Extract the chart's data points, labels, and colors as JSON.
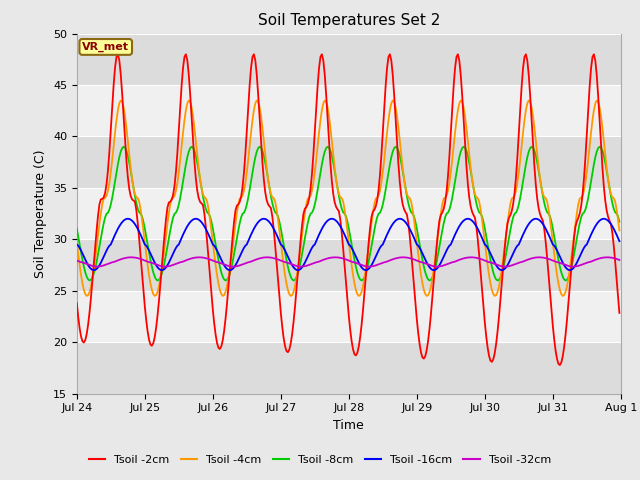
{
  "title": "Soil Temperatures Set 2",
  "xlabel": "Time",
  "ylabel": "Soil Temperature (C)",
  "ylim": [
    15,
    50
  ],
  "yticks": [
    15,
    20,
    25,
    30,
    35,
    40,
    45,
    50
  ],
  "fig_bg": "#e8e8e8",
  "plot_bg_light": "#f0f0f0",
  "plot_bg_dark": "#dcdcdc",
  "annotation_label": "VR_met",
  "annotation_box_color": "#ffff99",
  "annotation_box_edge": "#8b6914",
  "series_colors": {
    "Tsoil -2cm": "#ff0000",
    "Tsoil -4cm": "#ff9900",
    "Tsoil -8cm": "#00cc00",
    "Tsoil -16cm": "#0000ff",
    "Tsoil -32cm": "#cc00cc"
  },
  "tick_labels": [
    "Jul 24",
    "Jul 25",
    "Jul 26",
    "Jul 27",
    "Jul 28",
    "Jul 29",
    "Jul 30",
    "Jul 31",
    "Aug 1"
  ],
  "n_days": 8,
  "n_per_day": 48,
  "series_params": {
    "Tsoil -2cm": {
      "mean": 34.0,
      "amp": 14.0,
      "phase": 0.35,
      "lag_amp": 0.0,
      "lag_phase": 0.0,
      "sharp": 3.5
    },
    "Tsoil -4cm": {
      "mean": 34.0,
      "amp": 9.5,
      "phase": 0.4,
      "lag_amp": 0.0,
      "lag_phase": 0.0,
      "sharp": 2.5
    },
    "Tsoil -8cm": {
      "mean": 32.5,
      "amp": 6.5,
      "phase": 0.44,
      "lag_amp": 0.0,
      "lag_phase": 0.0,
      "sharp": 2.0
    },
    "Tsoil -16cm": {
      "mean": 29.5,
      "amp": 2.5,
      "phase": 0.5,
      "lag_amp": 0.0,
      "lag_phase": 0.0,
      "sharp": 1.0
    },
    "Tsoil -32cm": {
      "mean": 27.8,
      "amp": 0.45,
      "phase": 0.55,
      "lag_amp": 0.0,
      "lag_phase": 0.0,
      "sharp": 1.0
    }
  }
}
